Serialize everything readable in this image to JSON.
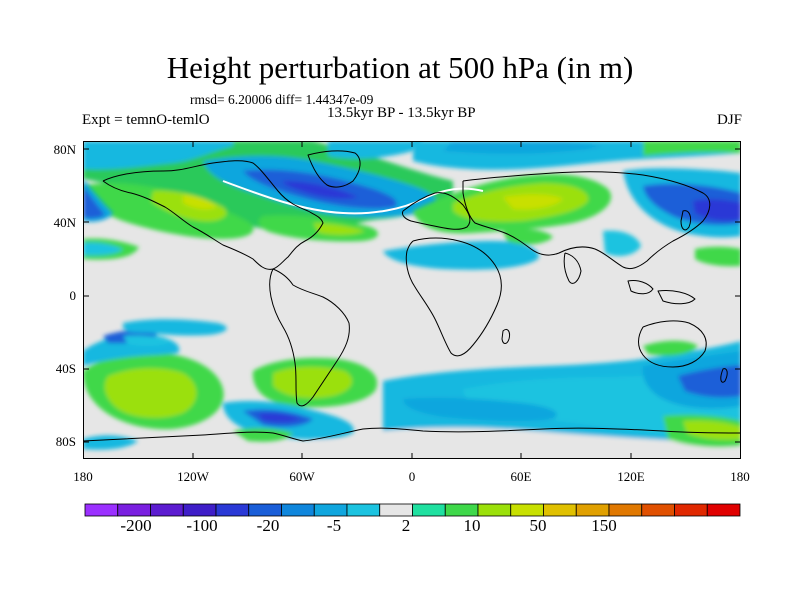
{
  "title": "Height perturbation at 500 hPa (in m)",
  "stats": "rmsd= 6.20006 diff= 1.44347e-09",
  "expt": "Expt = temnO-temlO",
  "period": "13.5kyr BP - 13.5kyr BP",
  "season": "DJF",
  "lat_labels": [
    "80N",
    "40N",
    "0",
    "40S",
    "80S"
  ],
  "lon_labels": [
    "180",
    "120W",
    "60W",
    "0",
    "60E",
    "120E",
    "180"
  ],
  "colorbar": {
    "labels": [
      "-200",
      "-100",
      "-20",
      "-5",
      "2",
      "10",
      "50",
      "150"
    ],
    "colors": [
      "#9b30ff",
      "#7a1fe0",
      "#5c1cd0",
      "#3f1ec8",
      "#2a39d6",
      "#1a5ed8",
      "#0f86dc",
      "#10a6de",
      "#1cc3e0",
      "#e6e6e6",
      "#1fe0a0",
      "#3fd84a",
      "#9be00a",
      "#c8e000",
      "#e0c000",
      "#e0a000",
      "#e07800",
      "#e05000",
      "#e02800",
      "#e00000"
    ]
  },
  "map": {
    "lat_range": [
      -90,
      90
    ],
    "lon_range": [
      -180,
      180
    ],
    "background": "#e6e6e6"
  }
}
